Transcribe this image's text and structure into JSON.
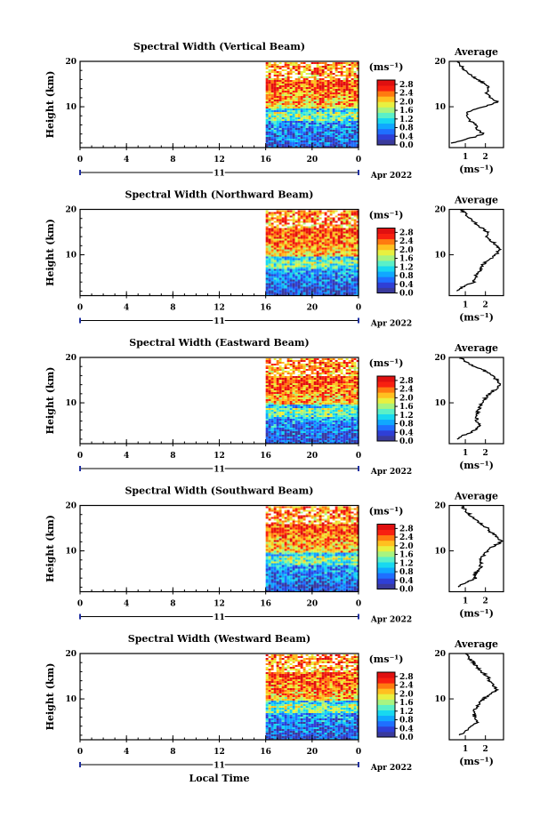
{
  "figure": {
    "xlabel": "Local Time",
    "date_label": "Apr 2022",
    "day_label": "11"
  },
  "chart_data": [
    {
      "type": "heatmap",
      "title": "Spectral Width (Vertical Beam)",
      "ylabel": "Height (km)",
      "x_ticks": [
        "0",
        "4",
        "8",
        "12",
        "16",
        "20",
        "0"
      ],
      "y_ticks": [
        "10",
        "20"
      ],
      "xlim": [
        0,
        24
      ],
      "ylim": [
        1,
        20
      ],
      "data_start_hour": 16,
      "colorbar": {
        "unit": "(ms⁻¹)",
        "ticks": [
          "2.8",
          "2.4",
          "2.0",
          "1.6",
          "1.2",
          "0.8",
          "0.4",
          "0.0"
        ],
        "range": [
          0.0,
          3.0
        ]
      },
      "profile": {
        "title": "Average",
        "xlabel": "(ms⁻¹)",
        "x_ticks": [
          "1",
          "2"
        ],
        "xlim": [
          0.2,
          2.9
        ],
        "y_ticks": [
          "10",
          "20"
        ],
        "height": [
          2,
          3,
          4,
          5,
          6,
          7,
          8,
          9,
          10,
          11,
          12,
          13,
          14,
          15,
          16,
          17,
          18,
          19,
          20
        ],
        "width": [
          0.3,
          1.2,
          1.9,
          1.6,
          1.5,
          1.2,
          1.0,
          1.2,
          1.9,
          2.6,
          2.3,
          2.0,
          2.2,
          2.0,
          1.6,
          1.3,
          1.0,
          0.8,
          0.6
        ]
      }
    },
    {
      "type": "heatmap",
      "title": "Spectral Width (Northward Beam)",
      "ylabel": "Height (km)",
      "x_ticks": [
        "0",
        "4",
        "8",
        "12",
        "16",
        "20",
        "0"
      ],
      "y_ticks": [
        "10",
        "20"
      ],
      "xlim": [
        0,
        24
      ],
      "ylim": [
        1,
        20
      ],
      "data_start_hour": 16,
      "colorbar": {
        "unit": "(ms⁻¹)",
        "ticks": [
          "2.8",
          "2.4",
          "2.0",
          "1.6",
          "1.2",
          "0.8",
          "0.4",
          "0.0"
        ],
        "range": [
          0.0,
          3.0
        ]
      },
      "profile": {
        "title": "Average",
        "xlabel": "(ms⁻¹)",
        "x_ticks": [
          "1",
          "2"
        ],
        "xlim": [
          0.2,
          2.9
        ],
        "y_ticks": [
          "10",
          "20"
        ],
        "height": [
          2,
          3,
          4,
          5,
          6,
          7,
          8,
          9,
          10,
          11,
          12,
          13,
          14,
          15,
          16,
          17,
          18,
          19,
          20
        ],
        "width": [
          0.5,
          0.9,
          1.4,
          1.5,
          1.6,
          1.8,
          1.9,
          2.2,
          2.5,
          2.7,
          2.6,
          2.3,
          2.0,
          2.1,
          1.8,
          1.5,
          1.3,
          1.0,
          0.8
        ]
      }
    },
    {
      "type": "heatmap",
      "title": "Spectral Width (Eastward Beam)",
      "ylabel": "Height (km)",
      "x_ticks": [
        "0",
        "4",
        "8",
        "12",
        "16",
        "20",
        "0"
      ],
      "y_ticks": [
        "10",
        "20"
      ],
      "xlim": [
        0,
        24
      ],
      "ylim": [
        1,
        20
      ],
      "data_start_hour": 16,
      "colorbar": {
        "unit": "(ms⁻¹)",
        "ticks": [
          "2.8",
          "2.4",
          "2.0",
          "1.6",
          "1.2",
          "0.8",
          "0.4",
          "0.0"
        ],
        "range": [
          0.0,
          3.0
        ]
      },
      "profile": {
        "title": "Average",
        "xlabel": "(ms⁻¹)",
        "x_ticks": [
          "1",
          "2"
        ],
        "xlim": [
          0.2,
          2.9
        ],
        "y_ticks": [
          "10",
          "20"
        ],
        "height": [
          2,
          3,
          4,
          5,
          6,
          7,
          8,
          9,
          10,
          11,
          12,
          13,
          14,
          15,
          16,
          17,
          18,
          19,
          20
        ],
        "width": [
          0.6,
          1.0,
          1.5,
          1.7,
          1.6,
          1.5,
          1.6,
          1.7,
          1.8,
          2.0,
          2.2,
          2.5,
          2.8,
          2.6,
          2.3,
          2.0,
          1.5,
          1.0,
          0.8
        ]
      }
    },
    {
      "type": "heatmap",
      "title": "Spectral Width (Southward Beam)",
      "ylabel": "Height (km)",
      "x_ticks": [
        "0",
        "4",
        "8",
        "12",
        "16",
        "20",
        "0"
      ],
      "y_ticks": [
        "10",
        "20"
      ],
      "xlim": [
        0,
        24
      ],
      "ylim": [
        1,
        20
      ],
      "data_start_hour": 16,
      "colorbar": {
        "unit": "(ms⁻¹)",
        "ticks": [
          "2.8",
          "2.4",
          "2.0",
          "1.6",
          "1.2",
          "0.8",
          "0.4",
          "0.0"
        ],
        "range": [
          0.0,
          3.0
        ]
      },
      "profile": {
        "title": "Average",
        "xlabel": "(ms⁻¹)",
        "x_ticks": [
          "1",
          "2"
        ],
        "xlim": [
          0.2,
          2.9
        ],
        "y_ticks": [
          "10",
          "20"
        ],
        "height": [
          2,
          3,
          4,
          5,
          6,
          7,
          8,
          9,
          10,
          11,
          12,
          13,
          14,
          15,
          16,
          17,
          18,
          19,
          20
        ],
        "width": [
          0.6,
          1.0,
          1.5,
          1.5,
          1.7,
          1.8,
          1.7,
          1.9,
          2.1,
          2.4,
          2.8,
          2.6,
          2.3,
          2.1,
          1.8,
          1.5,
          1.2,
          1.0,
          0.8
        ]
      }
    },
    {
      "type": "heatmap",
      "title": "Spectral Width (Westward Beam)",
      "ylabel": "Height (km)",
      "x_ticks": [
        "0",
        "4",
        "8",
        "12",
        "16",
        "20",
        "0"
      ],
      "y_ticks": [
        "10",
        "20"
      ],
      "xlim": [
        0,
        24
      ],
      "ylim": [
        1,
        20
      ],
      "data_start_hour": 16,
      "colorbar": {
        "unit": "(ms⁻¹)",
        "ticks": [
          "2.8",
          "2.4",
          "2.0",
          "1.6",
          "1.2",
          "0.8",
          "0.4",
          "0.0"
        ],
        "range": [
          0.0,
          3.0
        ]
      },
      "profile": {
        "title": "Average",
        "xlabel": "(ms⁻¹)",
        "x_ticks": [
          "1",
          "2"
        ],
        "xlim": [
          0.2,
          2.9
        ],
        "y_ticks": [
          "10",
          "20"
        ],
        "height": [
          2,
          3,
          4,
          5,
          6,
          7,
          8,
          9,
          10,
          11,
          12,
          13,
          14,
          15,
          16,
          17,
          18,
          19,
          20
        ],
        "width": [
          0.7,
          1.0,
          1.3,
          1.6,
          1.5,
          1.4,
          1.5,
          1.7,
          1.9,
          2.2,
          2.6,
          2.4,
          2.2,
          2.1,
          1.8,
          1.6,
          1.4,
          1.2,
          1.0
        ]
      }
    }
  ]
}
